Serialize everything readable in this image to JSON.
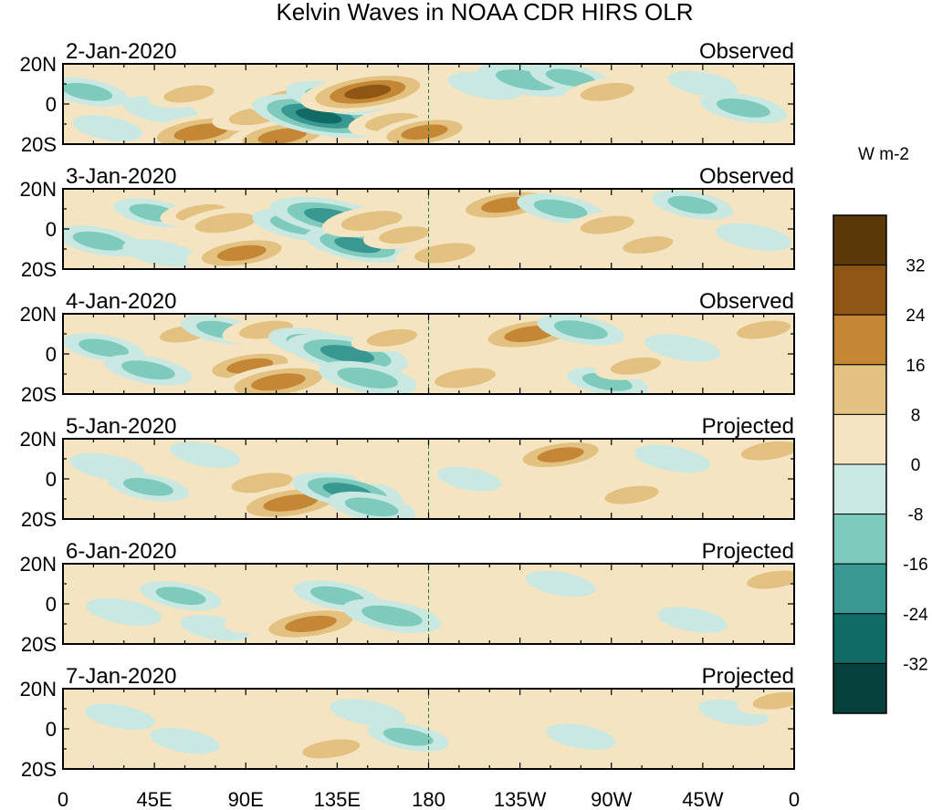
{
  "chart_data": {
    "type": "heatmap",
    "title": "Kelvin Waves in NOAA CDR HIRS OLR",
    "x_tick_labels": [
      "0",
      "45E",
      "90E",
      "135E",
      "180",
      "135W",
      "90W",
      "45W",
      "0"
    ],
    "x_range_deg": [
      0,
      360
    ],
    "y_tick_labels": [
      "20N",
      "0",
      "20S"
    ],
    "y_range_deg": [
      -20,
      20
    ],
    "dateline_marker": "180",
    "units": "W m-2",
    "colorbar": {
      "tick_labels": [
        "32",
        "24",
        "16",
        "8",
        "0",
        "-8",
        "-16",
        "-24",
        "-32"
      ],
      "bins": [
        {
          "range": [
            32,
            40
          ],
          "color": "#5a3808"
        },
        {
          "range": [
            24,
            32
          ],
          "color": "#8f5512"
        },
        {
          "range": [
            16,
            24
          ],
          "color": "#c48735"
        },
        {
          "range": [
            8,
            16
          ],
          "color": "#e2c181"
        },
        {
          "range": [
            0,
            8
          ],
          "color": "#f5e4c1"
        },
        {
          "range": [
            -8,
            0
          ],
          "color": "#c8e8e1"
        },
        {
          "range": [
            -16,
            -8
          ],
          "color": "#7ecbbe"
        },
        {
          "range": [
            -24,
            -16
          ],
          "color": "#3a9892"
        },
        {
          "range": [
            -32,
            -24
          ],
          "color": "#0f6b63"
        },
        {
          "range": [
            -40,
            -32
          ],
          "color": "#06413b"
        }
      ]
    },
    "panels": [
      {
        "date": "2-Jan-2020",
        "status": "Observed",
        "anomalies": [
          {
            "lon": 12,
            "lat": 6,
            "value": -12
          },
          {
            "lon": 22,
            "lat": -12,
            "value": -8
          },
          {
            "lon": 48,
            "lat": -3,
            "value": -10
          },
          {
            "lon": 62,
            "lat": 5,
            "value": 12
          },
          {
            "lon": 68,
            "lat": -14,
            "value": 26
          },
          {
            "lon": 95,
            "lat": -6,
            "value": 14
          },
          {
            "lon": 108,
            "lat": -16,
            "value": 22
          },
          {
            "lon": 112,
            "lat": 3,
            "value": 14
          },
          {
            "lon": 126,
            "lat": -6,
            "value": -30
          },
          {
            "lon": 134,
            "lat": 3,
            "value": -18
          },
          {
            "lon": 150,
            "lat": 6,
            "value": 30
          },
          {
            "lon": 162,
            "lat": -9,
            "value": 14
          },
          {
            "lon": 178,
            "lat": -14,
            "value": 20
          },
          {
            "lon": 208,
            "lat": 9,
            "value": -10
          },
          {
            "lon": 228,
            "lat": 12,
            "value": -18
          },
          {
            "lon": 250,
            "lat": 13,
            "value": -12
          },
          {
            "lon": 268,
            "lat": 6,
            "value": 14
          },
          {
            "lon": 288,
            "lat": -4,
            "value": 8
          },
          {
            "lon": 315,
            "lat": 10,
            "value": -8
          },
          {
            "lon": 335,
            "lat": -2,
            "value": -14
          }
        ]
      },
      {
        "date": "3-Jan-2020",
        "status": "Observed",
        "anomalies": [
          {
            "lon": 18,
            "lat": -6,
            "value": -14
          },
          {
            "lon": 45,
            "lat": 8,
            "value": -12
          },
          {
            "lon": 48,
            "lat": -12,
            "value": -10
          },
          {
            "lon": 68,
            "lat": 8,
            "value": 12
          },
          {
            "lon": 80,
            "lat": 3,
            "value": 18
          },
          {
            "lon": 88,
            "lat": -12,
            "value": 22
          },
          {
            "lon": 116,
            "lat": 2,
            "value": -16
          },
          {
            "lon": 132,
            "lat": 6,
            "value": -26
          },
          {
            "lon": 145,
            "lat": -8,
            "value": -20
          },
          {
            "lon": 152,
            "lat": 4,
            "value": 18
          },
          {
            "lon": 168,
            "lat": -3,
            "value": 12
          },
          {
            "lon": 188,
            "lat": -12,
            "value": 18
          },
          {
            "lon": 218,
            "lat": 12,
            "value": 22
          },
          {
            "lon": 245,
            "lat": 10,
            "value": -14
          },
          {
            "lon": 268,
            "lat": 2,
            "value": 14
          },
          {
            "lon": 288,
            "lat": -8,
            "value": 12
          },
          {
            "lon": 310,
            "lat": 12,
            "value": -12
          },
          {
            "lon": 340,
            "lat": -4,
            "value": -10
          }
        ]
      },
      {
        "date": "4-Jan-2020",
        "status": "Observed",
        "anomalies": [
          {
            "lon": 20,
            "lat": 3,
            "value": -12
          },
          {
            "lon": 42,
            "lat": -8,
            "value": -14
          },
          {
            "lon": 60,
            "lat": 10,
            "value": 12
          },
          {
            "lon": 78,
            "lat": 12,
            "value": -12
          },
          {
            "lon": 92,
            "lat": -6,
            "value": 20
          },
          {
            "lon": 100,
            "lat": 12,
            "value": 14
          },
          {
            "lon": 106,
            "lat": -14,
            "value": 26
          },
          {
            "lon": 124,
            "lat": 5,
            "value": -16
          },
          {
            "lon": 140,
            "lat": 0,
            "value": -26
          },
          {
            "lon": 150,
            "lat": -12,
            "value": -18
          },
          {
            "lon": 162,
            "lat": 8,
            "value": 12
          },
          {
            "lon": 198,
            "lat": -12,
            "value": 18
          },
          {
            "lon": 230,
            "lat": 10,
            "value": 24
          },
          {
            "lon": 255,
            "lat": 12,
            "value": -14
          },
          {
            "lon": 268,
            "lat": -14,
            "value": -12
          },
          {
            "lon": 282,
            "lat": -6,
            "value": 12
          },
          {
            "lon": 305,
            "lat": 3,
            "value": -10
          },
          {
            "lon": 345,
            "lat": 12,
            "value": 14
          }
        ]
      },
      {
        "date": "5-Jan-2020",
        "status": "Projected",
        "anomalies": [
          {
            "lon": 22,
            "lat": 6,
            "value": -10
          },
          {
            "lon": 42,
            "lat": -4,
            "value": -12
          },
          {
            "lon": 70,
            "lat": 12,
            "value": -8
          },
          {
            "lon": 98,
            "lat": -2,
            "value": 18
          },
          {
            "lon": 112,
            "lat": -12,
            "value": 26
          },
          {
            "lon": 122,
            "lat": 8,
            "value": 8
          },
          {
            "lon": 140,
            "lat": -6,
            "value": -22
          },
          {
            "lon": 152,
            "lat": -14,
            "value": -14
          },
          {
            "lon": 162,
            "lat": 4,
            "value": 10
          },
          {
            "lon": 200,
            "lat": 0,
            "value": -6
          },
          {
            "lon": 245,
            "lat": 12,
            "value": 20
          },
          {
            "lon": 268,
            "lat": 0,
            "value": 8
          },
          {
            "lon": 280,
            "lat": -8,
            "value": 14
          },
          {
            "lon": 300,
            "lat": 10,
            "value": -10
          },
          {
            "lon": 348,
            "lat": 14,
            "value": 16
          }
        ]
      },
      {
        "date": "6-Jan-2020",
        "status": "Projected",
        "anomalies": [
          {
            "lon": 30,
            "lat": -4,
            "value": -10
          },
          {
            "lon": 58,
            "lat": 4,
            "value": -12
          },
          {
            "lon": 75,
            "lat": -12,
            "value": -8
          },
          {
            "lon": 98,
            "lat": -8,
            "value": 10
          },
          {
            "lon": 122,
            "lat": -10,
            "value": 24
          },
          {
            "lon": 135,
            "lat": 4,
            "value": -14
          },
          {
            "lon": 162,
            "lat": -6,
            "value": -18
          },
          {
            "lon": 200,
            "lat": 6,
            "value": 6
          },
          {
            "lon": 245,
            "lat": 10,
            "value": -8
          },
          {
            "lon": 272,
            "lat": 0,
            "value": 10
          },
          {
            "lon": 310,
            "lat": -8,
            "value": -8
          },
          {
            "lon": 350,
            "lat": 12,
            "value": 14
          }
        ]
      },
      {
        "date": "7-Jan-2020",
        "status": "Projected",
        "anomalies": [
          {
            "lon": 28,
            "lat": 6,
            "value": -8
          },
          {
            "lon": 60,
            "lat": -6,
            "value": -8
          },
          {
            "lon": 105,
            "lat": 6,
            "value": 8
          },
          {
            "lon": 132,
            "lat": -10,
            "value": 16
          },
          {
            "lon": 150,
            "lat": 8,
            "value": -10
          },
          {
            "lon": 170,
            "lat": -4,
            "value": -12
          },
          {
            "lon": 210,
            "lat": 10,
            "value": 6
          },
          {
            "lon": 255,
            "lat": -4,
            "value": -8
          },
          {
            "lon": 282,
            "lat": -12,
            "value": 8
          },
          {
            "lon": 330,
            "lat": 8,
            "value": -8
          },
          {
            "lon": 352,
            "lat": 14,
            "value": 12
          }
        ]
      }
    ]
  }
}
